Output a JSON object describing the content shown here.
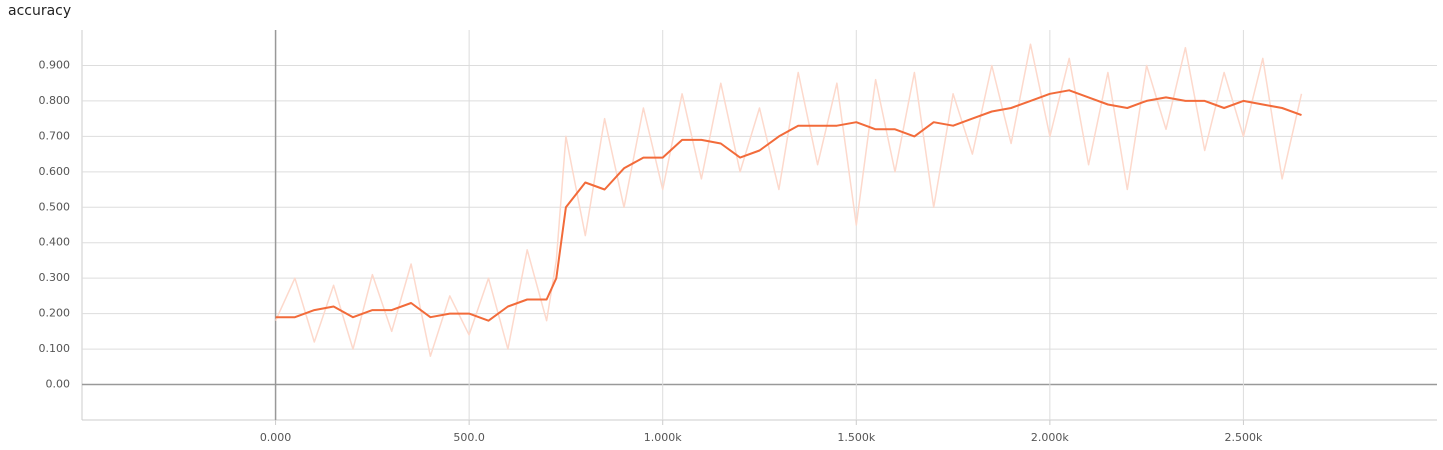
{
  "chart_data": {
    "type": "line",
    "title": "accuracy",
    "x": [
      0,
      50,
      100,
      150,
      200,
      250,
      300,
      350,
      400,
      450,
      500,
      550,
      600,
      650,
      700,
      725,
      750,
      800,
      850,
      900,
      950,
      1000,
      1050,
      1100,
      1150,
      1200,
      1250,
      1300,
      1350,
      1400,
      1450,
      1500,
      1550,
      1600,
      1650,
      1700,
      1750,
      1800,
      1850,
      1900,
      1950,
      2000,
      2050,
      2100,
      2150,
      2200,
      2250,
      2300,
      2350,
      2400,
      2450,
      2500,
      2550,
      2600,
      2650
    ],
    "series": [
      {
        "color": "#fdd9cc",
        "values": [
          0.18,
          0.3,
          0.12,
          0.28,
          0.1,
          0.31,
          0.15,
          0.34,
          0.08,
          0.25,
          0.14,
          0.3,
          0.1,
          0.38,
          0.18,
          0.35,
          0.7,
          0.42,
          0.75,
          0.5,
          0.78,
          0.55,
          0.82,
          0.58,
          0.85,
          0.6,
          0.78,
          0.55,
          0.88,
          0.62,
          0.85,
          0.45,
          0.86,
          0.6,
          0.88,
          0.5,
          0.82,
          0.65,
          0.9,
          0.68,
          0.96,
          0.7,
          0.92,
          0.62,
          0.88,
          0.55,
          0.9,
          0.72,
          0.95,
          0.66,
          0.88,
          0.7,
          0.92,
          0.58,
          0.82
        ]
      },
      {
        "color": "#f26b3a",
        "values": [
          0.19,
          0.19,
          0.21,
          0.22,
          0.19,
          0.21,
          0.21,
          0.23,
          0.19,
          0.2,
          0.2,
          0.18,
          0.22,
          0.24,
          0.24,
          0.3,
          0.5,
          0.57,
          0.55,
          0.61,
          0.64,
          0.64,
          0.69,
          0.69,
          0.68,
          0.64,
          0.66,
          0.7,
          0.73,
          0.73,
          0.73,
          0.74,
          0.72,
          0.72,
          0.7,
          0.74,
          0.73,
          0.75,
          0.77,
          0.78,
          0.8,
          0.82,
          0.83,
          0.81,
          0.79,
          0.78,
          0.8,
          0.81,
          0.8,
          0.8,
          0.78,
          0.8,
          0.79,
          0.78,
          0.76
        ]
      }
    ],
    "xlim": [
      -500,
      3000
    ],
    "ylim": [
      -0.1,
      1.0
    ],
    "xticks": [
      {
        "value": 0,
        "label": "0.000"
      },
      {
        "value": 500,
        "label": "500.0"
      },
      {
        "value": 1000,
        "label": "1.000k"
      },
      {
        "value": 1500,
        "label": "1.500k"
      },
      {
        "value": 2000,
        "label": "2.000k"
      },
      {
        "value": 2500,
        "label": "2.500k"
      }
    ],
    "yticks": [
      {
        "value": 0,
        "label": "0.00"
      },
      {
        "value": 0.1,
        "label": "0.100"
      },
      {
        "value": 0.2,
        "label": "0.200"
      },
      {
        "value": 0.3,
        "label": "0.300"
      },
      {
        "value": 0.4,
        "label": "0.400"
      },
      {
        "value": 0.5,
        "label": "0.500"
      },
      {
        "value": 0.6,
        "label": "0.600"
      },
      {
        "value": 0.7,
        "label": "0.700"
      },
      {
        "value": 0.8,
        "label": "0.800"
      },
      {
        "value": 0.9,
        "label": "0.900"
      }
    ],
    "grid": true
  }
}
